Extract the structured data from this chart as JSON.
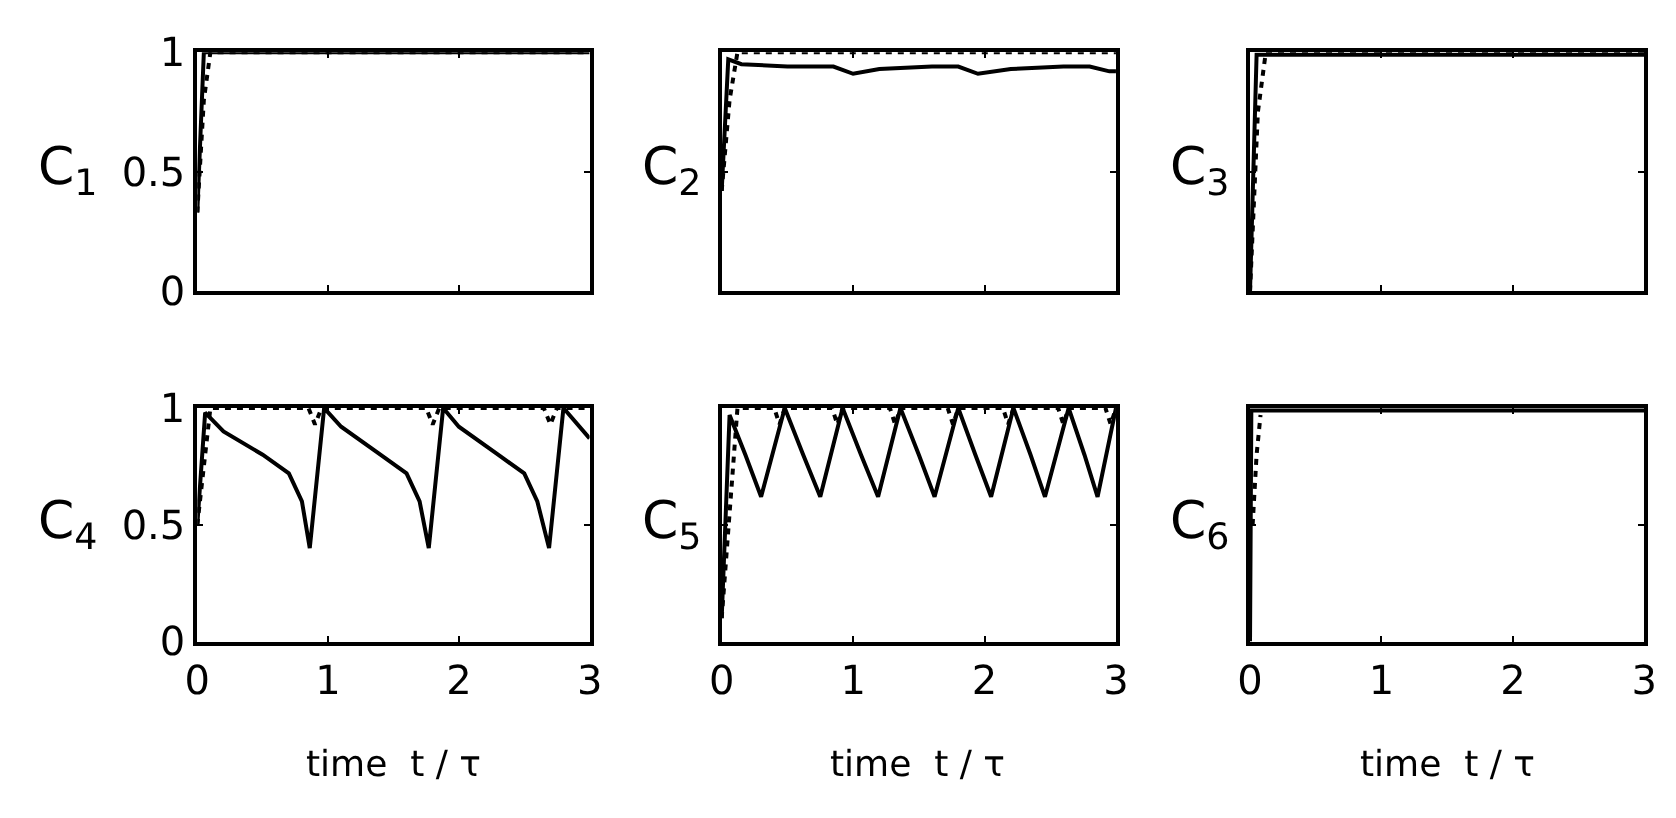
{
  "chart_data": [
    {
      "type": "line",
      "ylabel": "C$_{1}$",
      "xlim": [
        0,
        3
      ],
      "ylim": [
        0,
        1
      ],
      "xticks": [
        0,
        1,
        2,
        3
      ],
      "yticks": [
        0,
        0.5,
        1
      ],
      "tick_labels": "y",
      "series": [
        {
          "color": "#000000",
          "line_style": "solid",
          "x": [
            0,
            0.05,
            0.5,
            1,
            2,
            3
          ],
          "values": [
            0.33,
            1,
            1,
            1,
            1,
            1
          ]
        },
        {
          "color": "#000000",
          "line_style": "dotted",
          "x": [
            0,
            0.05,
            0.1,
            1,
            2,
            3
          ],
          "values": [
            0.33,
            0.8,
            1,
            1,
            1,
            1
          ]
        }
      ]
    },
    {
      "type": "line",
      "ylabel": "C$_{2}$",
      "xlim": [
        0,
        3
      ],
      "ylim": [
        0,
        1
      ],
      "xticks": [
        0,
        1,
        2,
        3
      ],
      "yticks": [
        0,
        0.5,
        1
      ],
      "tick_labels": false,
      "series": [
        {
          "color": "#000000",
          "line_style": "solid",
          "x": [
            0,
            0.05,
            0.15,
            0.5,
            0.85,
            1.0,
            1.2,
            1.6,
            1.8,
            1.95,
            2.2,
            2.6,
            2.8,
            2.95,
            3
          ],
          "values": [
            0.42,
            0.97,
            0.95,
            0.94,
            0.94,
            0.91,
            0.93,
            0.94,
            0.94,
            0.91,
            0.93,
            0.94,
            0.94,
            0.92,
            0.92
          ]
        },
        {
          "color": "#000000",
          "line_style": "dotted",
          "x": [
            0,
            0.06,
            0.12,
            1,
            2,
            3
          ],
          "values": [
            0.42,
            0.8,
            1,
            1,
            1,
            1
          ]
        }
      ]
    },
    {
      "type": "line",
      "ylabel": "C$_{3}$",
      "xlim": [
        0,
        3
      ],
      "ylim": [
        0,
        1
      ],
      "xticks": [
        0,
        1,
        2,
        3
      ],
      "yticks": [
        0,
        0.5,
        1
      ],
      "tick_labels": false,
      "series": [
        {
          "color": "#000000",
          "line_style": "solid",
          "x": [
            0,
            0.05,
            0.5,
            1,
            1.5,
            2,
            2.5,
            3
          ],
          "values": [
            0,
            0.99,
            0.99,
            0.99,
            0.99,
            0.99,
            0.99,
            0.99
          ]
        },
        {
          "color": "#000000",
          "line_style": "dotted",
          "x": [
            0,
            0.06,
            0.12,
            1,
            2,
            3
          ],
          "values": [
            0,
            0.75,
            1,
            1,
            1,
            1
          ]
        }
      ]
    },
    {
      "type": "line",
      "ylabel": "C$_{4}$",
      "xlabel": "time  t / τ",
      "xlim": [
        0,
        3
      ],
      "ylim": [
        0,
        1
      ],
      "xticks": [
        0,
        1,
        2,
        3
      ],
      "yticks": [
        0,
        0.5,
        1
      ],
      "series": [
        {
          "color": "#000000",
          "line_style": "solid",
          "x": [
            0,
            0.06,
            0.2,
            0.5,
            0.7,
            0.8,
            0.86,
            0.97,
            1.1,
            1.4,
            1.6,
            1.7,
            1.77,
            1.88,
            2.0,
            2.3,
            2.5,
            2.6,
            2.69,
            2.8,
            3
          ],
          "values": [
            0.5,
            0.98,
            0.9,
            0.8,
            0.72,
            0.6,
            0.4,
            1,
            0.92,
            0.8,
            0.72,
            0.6,
            0.4,
            1,
            0.92,
            0.8,
            0.72,
            0.6,
            0.4,
            1,
            0.87
          ]
        },
        {
          "color": "#000000",
          "line_style": "dotted",
          "x": [
            0,
            0.1,
            0.85,
            0.9,
            0.95,
            1.75,
            1.8,
            1.85,
            2.65,
            2.7,
            2.75,
            3
          ],
          "values": [
            0.5,
            1,
            1,
            0.93,
            1,
            1,
            0.93,
            1,
            1,
            0.93,
            1,
            1
          ]
        }
      ]
    },
    {
      "type": "line",
      "ylabel": "C$_{5}$",
      "xlabel": "time  t / τ",
      "xlim": [
        0,
        3
      ],
      "ylim": [
        0,
        1
      ],
      "xticks": [
        0,
        1,
        2,
        3
      ],
      "yticks": [
        0,
        0.5,
        1
      ],
      "tick_labels": "x",
      "series": [
        {
          "color": "#000000",
          "line_style": "solid",
          "x": [
            0,
            0.06,
            0.18,
            0.3,
            0.48,
            0.62,
            0.75,
            0.92,
            1.06,
            1.19,
            1.36,
            1.5,
            1.62,
            1.8,
            1.93,
            2.05,
            2.22,
            2.35,
            2.46,
            2.64,
            2.76,
            2.86,
            3
          ],
          "values": [
            0.1,
            0.97,
            0.8,
            0.62,
            1,
            0.8,
            0.62,
            1,
            0.8,
            0.62,
            1,
            0.8,
            0.62,
            1,
            0.8,
            0.62,
            1,
            0.8,
            0.62,
            1,
            0.8,
            0.62,
            1
          ]
        },
        {
          "color": "#000000",
          "line_style": "dotted",
          "x": [
            0,
            0.12,
            0.4,
            0.44,
            0.48,
            0.84,
            0.88,
            0.92,
            1.28,
            1.32,
            1.36,
            1.72,
            1.76,
            1.8,
            2.14,
            2.18,
            2.22,
            2.56,
            2.6,
            2.64,
            2.92,
            2.96,
            3
          ],
          "values": [
            0.1,
            1,
            1,
            0.93,
            1,
            1,
            0.93,
            1,
            1,
            0.93,
            1,
            1,
            0.93,
            1,
            1,
            0.93,
            1,
            1,
            0.93,
            1,
            1,
            0.93,
            1
          ]
        }
      ]
    },
    {
      "type": "line",
      "ylabel": "C$_{6}$",
      "xlabel": "time  t / τ",
      "xlim": [
        0,
        3
      ],
      "ylim": [
        0,
        1
      ],
      "xticks": [
        0,
        1,
        2,
        3
      ],
      "yticks": [
        0,
        0.5,
        1
      ],
      "tick_labels": "x",
      "series": [
        {
          "color": "#000000",
          "line_style": "solid",
          "x": [
            0,
            0.01,
            0.5,
            1,
            2,
            3
          ],
          "values": [
            0,
            0.99,
            0.99,
            0.99,
            0.99,
            0.99
          ]
        },
        {
          "color": "#000000",
          "line_style": "dotted",
          "x": [
            0.02,
            0.05,
            0.08
          ],
          "values": [
            0.5,
            0.8,
            0.97
          ]
        }
      ]
    }
  ]
}
